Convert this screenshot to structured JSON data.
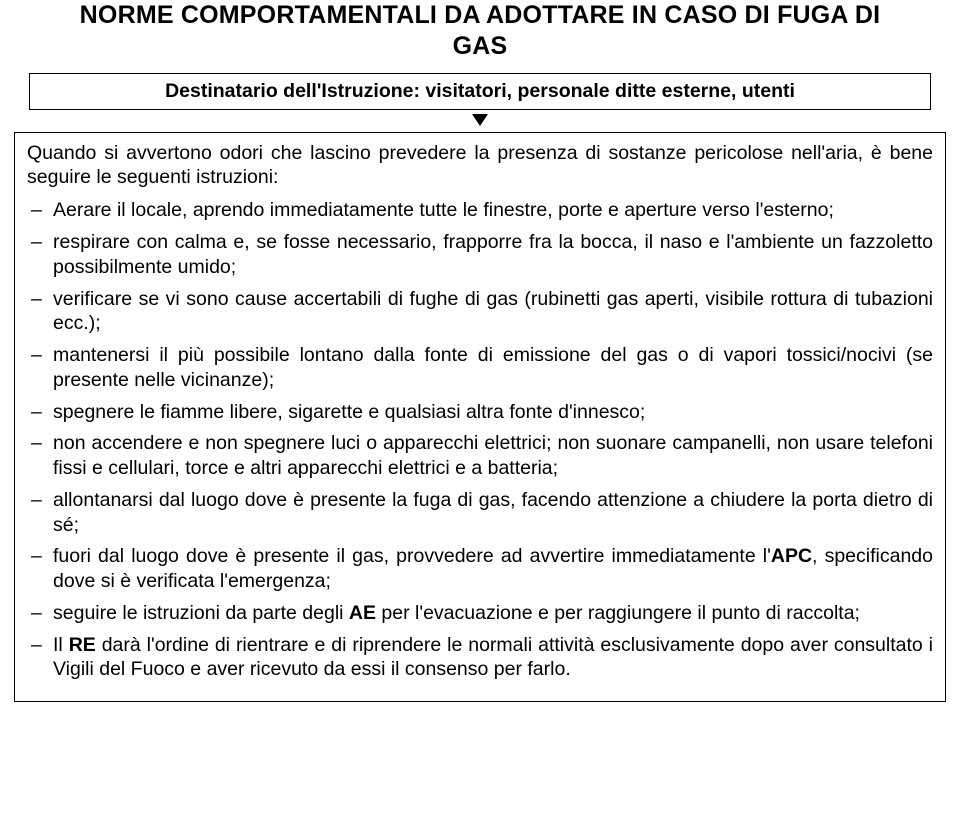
{
  "title_line1": "NORME COMPORTAMENTALI DA ADOTTARE IN CASO DI FUGA DI",
  "title_line2": "GAS",
  "destinatario": "Destinatario dell'Istruzione: visitatori, personale ditte esterne, utenti",
  "intro": "Quando si avvertono odori che lascino prevedere la presenza di sostanze pericolose nell'aria, è bene seguire le seguenti istruzioni:",
  "items": [
    "Aerare il locale, aprendo immediatamente tutte le finestre, porte e aperture verso l'esterno;",
    "respirare con calma e, se fosse necessario, frapporre fra la bocca, il naso e l'ambiente un fazzoletto possibilmente umido;",
    "verificare se vi sono cause accertabili di fughe di gas (rubinetti gas aperti, visibile rottura di tubazioni ecc.);",
    "mantenersi il più possibile lontano dalla fonte di emissione del gas o di vapori tossici/nocivi (se presente nelle vicinanze);",
    "spegnere le fiamme libere, sigarette e qualsiasi altra fonte d'innesco;",
    "non accendere e non spegnere luci o apparecchi elettrici; non suonare campanelli, non usare telefoni fissi e cellulari, torce e altri apparecchi elettrici e a batteria;",
    "allontanarsi dal luogo dove è presente la fuga di gas, facendo attenzione a chiudere la porta dietro di sé;"
  ],
  "item_apc_pre": "fuori dal luogo dove è presente il gas, provvedere ad avvertire immediatamente l'",
  "item_apc_bold": "APC",
  "item_apc_post": ", specificando dove si è verificata l'emergenza;",
  "item_ae_pre": "seguire le istruzioni da parte degli ",
  "item_ae_bold": "AE",
  "item_ae_post": " per l'evacuazione e per raggiungere il punto di raccolta;",
  "item_re_pre": "Il ",
  "item_re_bold": "RE",
  "item_re_post": " darà l'ordine di rientrare e di riprendere le normali attività esclusivamente dopo aver consultato i Vigili del Fuoco e aver ricevuto da essi il consenso per farlo."
}
